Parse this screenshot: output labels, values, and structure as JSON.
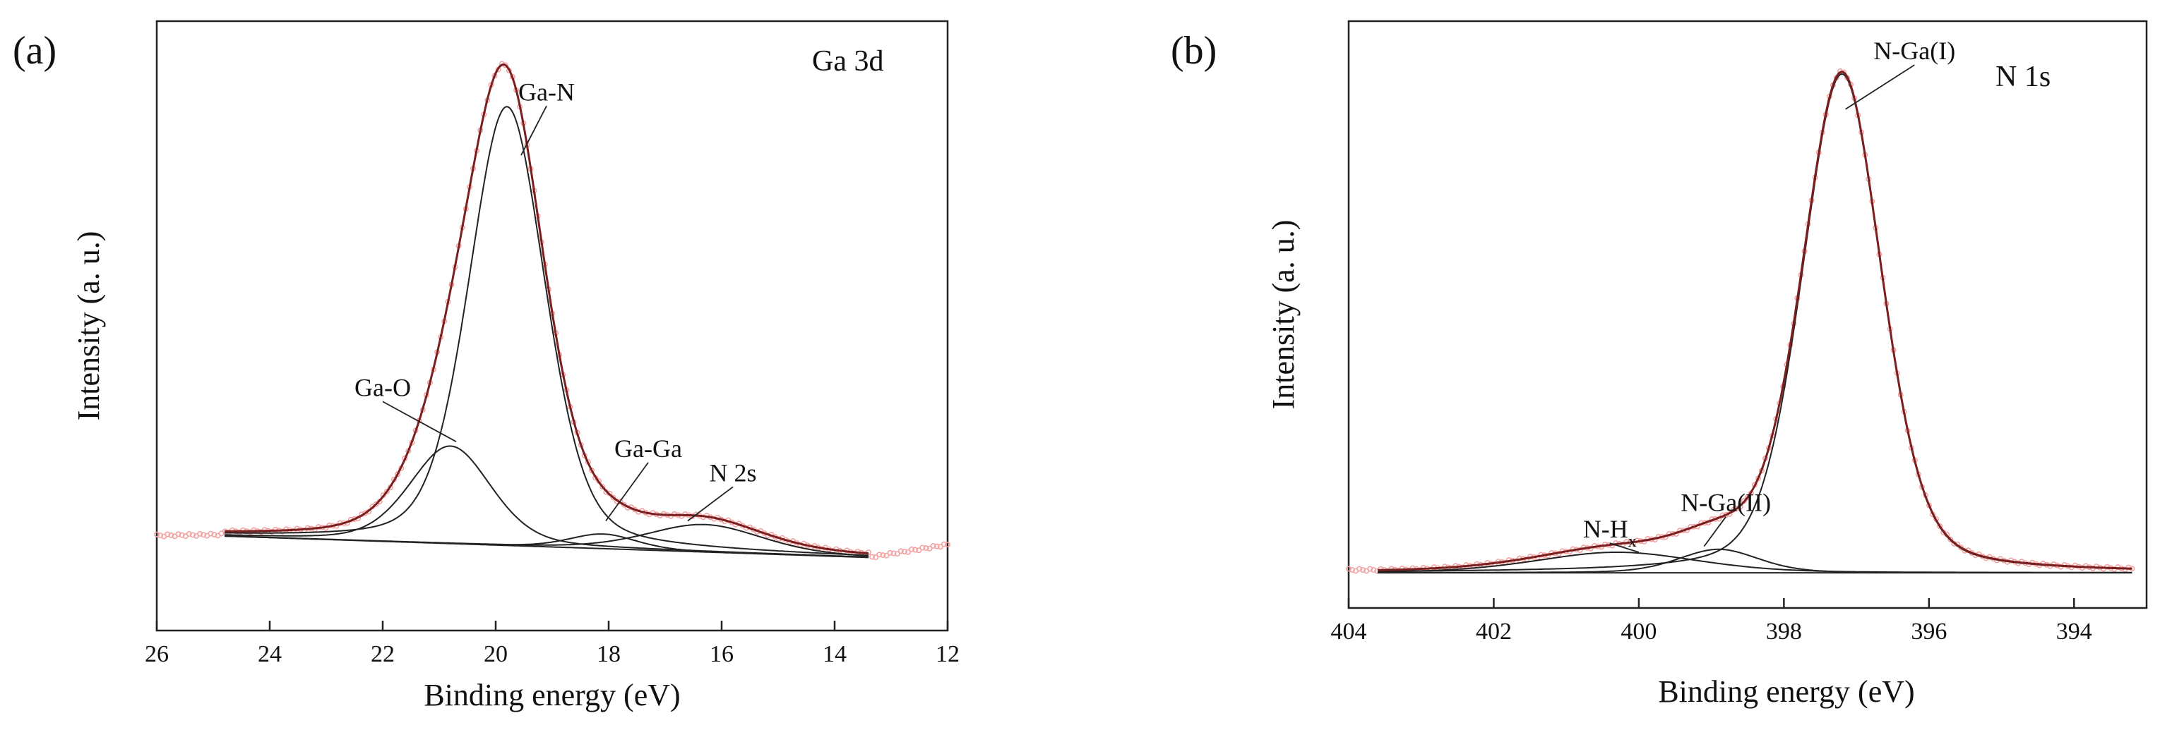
{
  "chart_data": [
    {
      "type": "line",
      "panel_label": "(a)",
      "title": "Ga 3d",
      "xlabel": "Binding energy (eV)",
      "ylabel": "Intensity (a. u.)",
      "xlim": [
        26,
        12
      ],
      "ylim": [
        0,
        1.0
      ],
      "x_reversed": true,
      "xticks": [
        "26",
        "24",
        "22",
        "20",
        "18",
        "16",
        "14",
        "12"
      ],
      "xtick_values": [
        26,
        24,
        22,
        20,
        18,
        16,
        14,
        12
      ],
      "x_range": [
        24.8,
        13.4
      ],
      "background": {
        "type": "linear",
        "y_start": 0.155,
        "y_end": 0.12
      },
      "components": [
        {
          "name": "Ga-N",
          "center": 19.8,
          "height": 0.72,
          "fwhm": 1.6
        },
        {
          "name": "Ga-O",
          "center": 20.8,
          "height": 0.16,
          "fwhm": 1.7
        },
        {
          "name": "Ga-Ga",
          "center": 18.1,
          "height": 0.024,
          "fwhm": 1.4
        },
        {
          "name": "N 2s",
          "center": 16.3,
          "height": 0.045,
          "fwhm": 2.4
        }
      ],
      "experimental": {
        "color": "#f4a3a3",
        "x_range": [
          26,
          12
        ],
        "y_left": 0.156,
        "y_right": 0.175
      },
      "envelope_color": "#7a1f1f",
      "annotations": [
        {
          "text": "Ga-N",
          "x": 19.1,
          "y": 0.87,
          "tip_x": 19.55,
          "tip_y": 0.78
        },
        {
          "text": "Ga-O",
          "x": 22.0,
          "y": 0.385,
          "tip_x": 20.7,
          "tip_y": 0.31
        },
        {
          "text": "Ga-Ga",
          "x": 17.3,
          "y": 0.285,
          "tip_x": 18.05,
          "tip_y": 0.18
        },
        {
          "text": "N 2s",
          "x": 15.8,
          "y": 0.245,
          "tip_x": 16.6,
          "tip_y": 0.18
        }
      ]
    },
    {
      "type": "line",
      "panel_label": "(b)",
      "title": "N 1s",
      "xlabel": "Binding energy (eV)",
      "ylabel": "Intensity (a. u.)",
      "xlim": [
        404,
        393
      ],
      "ylim": [
        0,
        1.0
      ],
      "x_reversed": true,
      "xticks": [
        "404",
        "402",
        "400",
        "398",
        "396",
        "394"
      ],
      "xtick_values": [
        404,
        402,
        400,
        398,
        396,
        394
      ],
      "x_range": [
        403.6,
        393.2
      ],
      "background": {
        "type": "linear",
        "y_start": 0.06,
        "y_end": 0.06
      },
      "components": [
        {
          "name": "N-Ga(I)",
          "center": 397.2,
          "height": 0.85,
          "fwhm": 1.3
        },
        {
          "name": "N-Ga(II)",
          "center": 398.9,
          "height": 0.04,
          "fwhm": 1.3
        },
        {
          "name": "N-Hx",
          "center": 400.3,
          "height": 0.035,
          "fwhm": 2.6
        }
      ],
      "experimental": {
        "color": "#f4a3a3",
        "x_range": [
          404,
          393.2
        ],
        "y_left": 0.065,
        "y_right": 0.06
      },
      "envelope_color": "#7a1f1f",
      "annotations": [
        {
          "text": "N-Ga(I)",
          "x": 396.2,
          "y": 0.935,
          "tip_x": 397.15,
          "tip_y": 0.85
        },
        {
          "text": "N-Ga(II)",
          "x": 398.8,
          "y": 0.165,
          "tip_x": 399.1,
          "tip_y": 0.105
        },
        {
          "text": "N-H",
          "subscript": "x",
          "x": 400.4,
          "y": 0.12,
          "tip_x": 400.0,
          "tip_y": 0.095
        }
      ]
    }
  ]
}
